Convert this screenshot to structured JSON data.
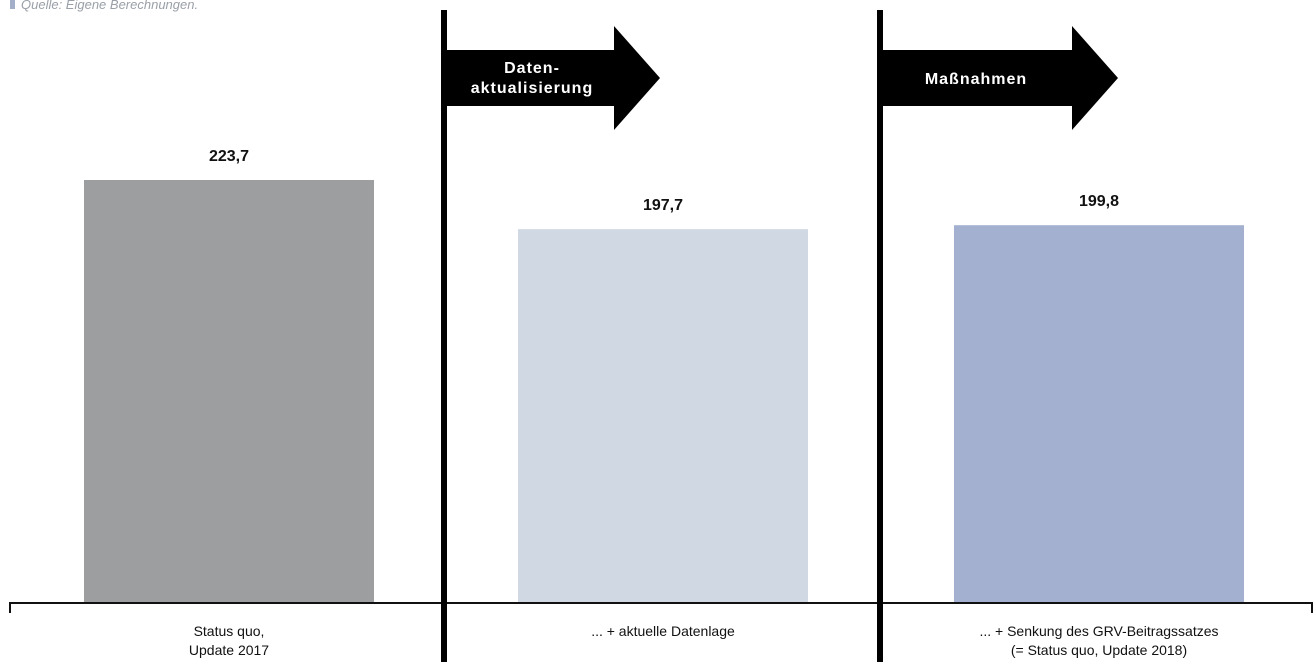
{
  "source_note": "Quelle: Eigene Berechnungen.",
  "chart_data": {
    "type": "bar",
    "categories": [
      [
        "Status quo,",
        "Update 2017"
      ],
      [
        "... + aktuelle Datenlage"
      ],
      [
        "... + Senkung des GRV-Beitragssatzes",
        "(= Status quo, Update 2018)"
      ]
    ],
    "values": [
      223.7,
      197.7,
      199.8
    ],
    "value_labels": [
      "223,7",
      "197,7",
      "199,8"
    ],
    "bar_colors": [
      "#9d9e9f",
      "#d0d8e4",
      "#a3b0cf"
    ],
    "transitions": [
      {
        "label": [
          "Daten-",
          "aktualisierung"
        ]
      },
      {
        "label": [
          "Maßnahmen"
        ]
      }
    ],
    "ylim": [
      0,
      223.7
    ],
    "grid": false,
    "legend": "none"
  }
}
